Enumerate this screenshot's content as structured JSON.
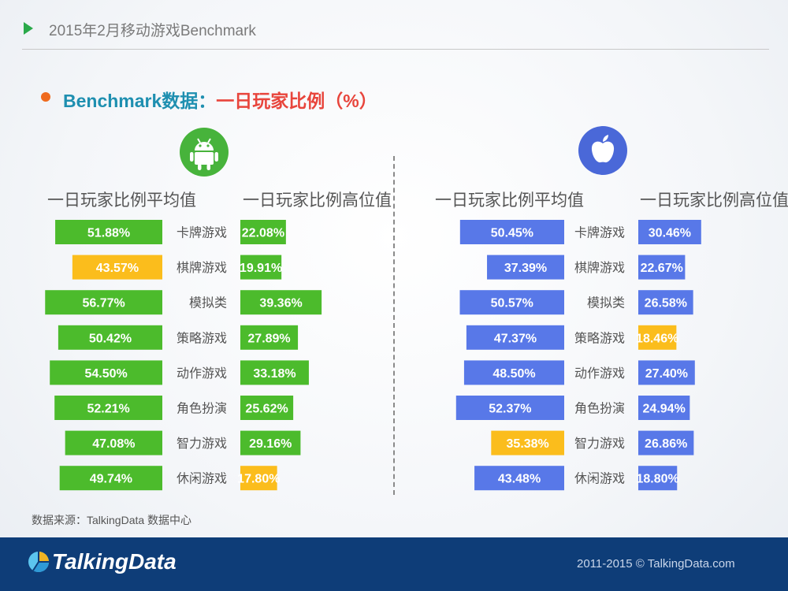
{
  "header": {
    "title": "2015年2月移动游戏Benchmark"
  },
  "subtitle": {
    "prefix": "Benchmark数据：",
    "suffix": "一日玩家比例（%）"
  },
  "icons": {
    "android": "android-icon",
    "apple": "apple-icon",
    "logo": "talkingdata-logo-icon"
  },
  "colors": {
    "android": "#4cbb2c",
    "ios": "#5878e8",
    "highlight": "#fbbd1c",
    "label": "#555555"
  },
  "chart_data": {
    "type": "bar",
    "categories": [
      "卡牌游戏",
      "棋牌游戏",
      "模拟类",
      "策略游戏",
      "动作游戏",
      "角色扮演",
      "智力游戏",
      "休闲游戏"
    ],
    "column_headers": {
      "avg": "一日玩家比例平均值",
      "high": "一日玩家比例高位值"
    },
    "panels": [
      {
        "platform": "Android",
        "series": [
          {
            "name": "一日玩家比例平均值",
            "values": [
              51.88,
              43.57,
              56.77,
              50.42,
              54.5,
              52.21,
              47.08,
              49.74
            ],
            "labels": [
              "51.88%",
              "43.57%",
              "56.77%",
              "50.42%",
              "54.50%",
              "52.21%",
              "47.08%",
              "49.74%"
            ],
            "highlight": [
              false,
              true,
              false,
              false,
              false,
              false,
              false,
              false
            ]
          },
          {
            "name": "一日玩家比例高位值",
            "values": [
              22.08,
              19.91,
              39.36,
              27.89,
              33.18,
              25.62,
              29.16,
              17.8
            ],
            "labels": [
              "22.08%",
              "19.91%",
              "39.36%",
              "27.89%",
              "33.18%",
              "25.62%",
              "29.16%",
              "17.80%"
            ],
            "highlight": [
              false,
              false,
              false,
              false,
              false,
              false,
              false,
              true
            ]
          }
        ]
      },
      {
        "platform": "iOS",
        "series": [
          {
            "name": "一日玩家比例平均值",
            "values": [
              50.45,
              37.39,
              50.57,
              47.37,
              48.5,
              52.37,
              35.38,
              43.48
            ],
            "labels": [
              "50.45%",
              "37.39%",
              "50.57%",
              "47.37%",
              "48.50%",
              "52.37%",
              "35.38%",
              "43.48%"
            ],
            "highlight": [
              false,
              false,
              false,
              false,
              false,
              false,
              true,
              false
            ]
          },
          {
            "name": "一日玩家比例高位值",
            "values": [
              30.46,
              22.67,
              26.58,
              18.46,
              27.4,
              24.94,
              26.86,
              18.8
            ],
            "labels": [
              "30.46%",
              "22.67%",
              "26.58%",
              "18.46%",
              "27.40%",
              "24.94%",
              "26.86%",
              "18.80%"
            ],
            "highlight": [
              false,
              false,
              false,
              true,
              false,
              false,
              false,
              false
            ]
          }
        ]
      }
    ]
  },
  "source": "数据来源：TalkingData 数据中心",
  "footer": {
    "logo_text": "TalkingData",
    "copyright": "2011-2015 © TalkingData.com"
  }
}
